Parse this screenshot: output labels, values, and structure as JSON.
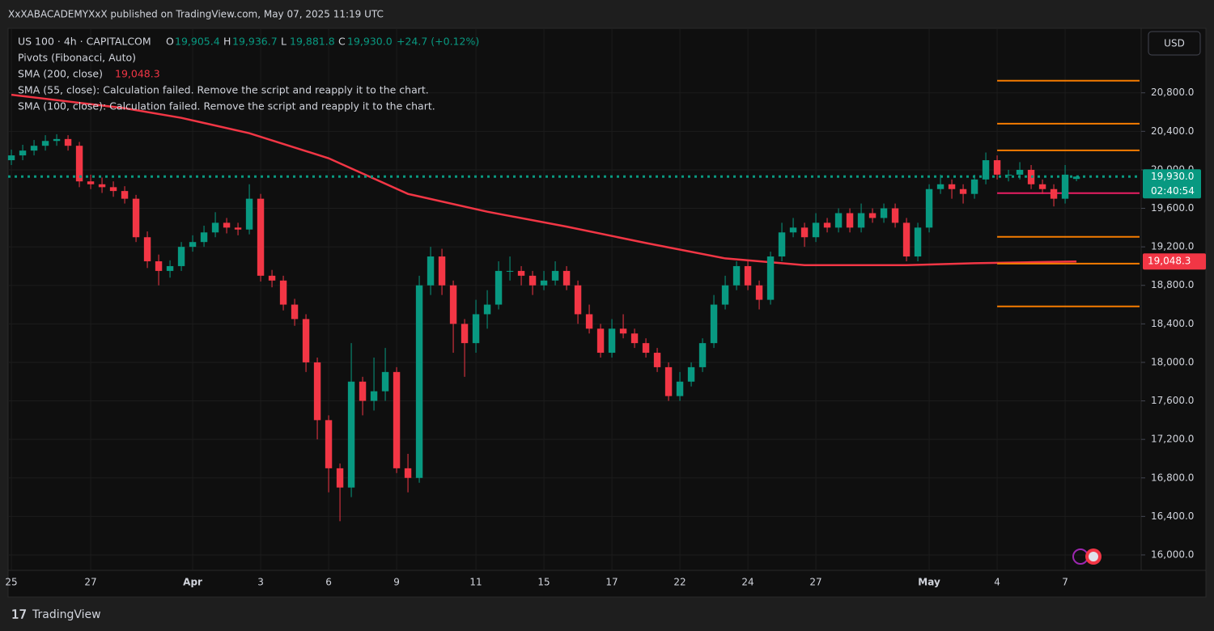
{
  "header": {
    "published": "XxXABACADEMYXxX published on TradingView.com, May 07, 2025 11:19 UTC",
    "brand": "TradingView",
    "currency": "USD"
  },
  "legend": {
    "symbol": "US 100 · 4h · CAPITALCOM",
    "ohlc": [
      {
        "label": "O",
        "value": "19,905.4"
      },
      {
        "label": "H",
        "value": "19,936.7"
      },
      {
        "label": "L",
        "value": "19,881.8"
      },
      {
        "label": "C",
        "value": "19,930.0"
      }
    ],
    "change": "+24.7 (+0.12%)",
    "pivots": "Pivots (Fibonacci, Auto)",
    "sma200": {
      "name": "SMA (200, close)",
      "value": "19,048.3"
    },
    "errors": [
      "SMA (55, close): Calculation failed. Remove the script and reapply it to the chart.",
      "SMA (100, close): Calculation failed. Remove the script and reapply it to the chart."
    ]
  },
  "chart_data": {
    "type": "candlestick",
    "up_color": "#089981",
    "down_color": "#f23645",
    "open": [
      20100,
      20150,
      20200,
      20250,
      20300,
      20320,
      20250,
      19880,
      19850,
      19820,
      19780,
      19700,
      19300,
      19050,
      18950,
      19000,
      19200,
      19250,
      19350,
      19450,
      19400,
      19380,
      19700,
      18900,
      18850,
      18600,
      18450,
      18000,
      17400,
      16900,
      16700,
      17800,
      17600,
      17700,
      17900,
      16900,
      16800,
      18800,
      19100,
      18800,
      18400,
      18200,
      18500,
      18600,
      18950,
      18950,
      18900,
      18800,
      18850,
      18950,
      18800,
      18500,
      18350,
      18100,
      18350,
      18300,
      18200,
      18100,
      17950,
      17650,
      17800,
      17950,
      18200,
      18600,
      18800,
      19000,
      18800,
      18650,
      19100,
      19350,
      19400,
      19300,
      19450,
      19400,
      19550,
      19400,
      19550,
      19500,
      19600,
      19450,
      19100,
      19400,
      19800,
      19850,
      19800,
      19750,
      19900,
      20100,
      19950,
      19950,
      20000,
      19850,
      19800,
      19700,
      19905.4
    ],
    "high": [
      20210,
      20260,
      20310,
      20360,
      20370,
      20360,
      20290,
      19950,
      19920,
      19880,
      19830,
      19740,
      19360,
      19120,
      19060,
      19250,
      19320,
      19420,
      19560,
      19500,
      19450,
      19850,
      19750,
      18960,
      18900,
      18660,
      18500,
      18050,
      17450,
      16950,
      18200,
      17850,
      18050,
      18150,
      17950,
      17050,
      18900,
      19200,
      19180,
      18850,
      18450,
      18650,
      18750,
      19050,
      19100,
      19000,
      18950,
      18950,
      19050,
      19000,
      18850,
      18600,
      18400,
      18450,
      18500,
      18350,
      18250,
      18150,
      18000,
      17900,
      18000,
      18250,
      18700,
      18900,
      19050,
      19050,
      18850,
      19150,
      19450,
      19500,
      19450,
      19550,
      19500,
      19600,
      19600,
      19650,
      19600,
      19650,
      19650,
      19500,
      19450,
      19850,
      19950,
      19900,
      19850,
      19950,
      20180,
      20150,
      20000,
      20080,
      20050,
      19900,
      19850,
      20050,
      19936.7
    ],
    "low": [
      20050,
      20100,
      20150,
      20200,
      20250,
      20200,
      19820,
      19800,
      19760,
      19720,
      19650,
      19250,
      18980,
      18800,
      18880,
      18950,
      19150,
      19200,
      19300,
      19340,
      19320,
      19330,
      18840,
      18780,
      18540,
      18380,
      17900,
      17200,
      16650,
      16350,
      16600,
      17450,
      17500,
      17600,
      16850,
      16650,
      16750,
      18700,
      18700,
      18100,
      17850,
      18100,
      18350,
      18550,
      18850,
      18800,
      18700,
      18750,
      18800,
      18750,
      18400,
      18300,
      18050,
      18050,
      18250,
      18150,
      18050,
      17900,
      17600,
      17600,
      17750,
      17900,
      18150,
      18550,
      18750,
      18750,
      18550,
      18600,
      19050,
      19300,
      19200,
      19250,
      19350,
      19350,
      19350,
      19350,
      19450,
      19450,
      19400,
      19050,
      19050,
      19350,
      19750,
      19700,
      19650,
      19700,
      19850,
      19900,
      19880,
      19900,
      19800,
      19750,
      19620,
      19650,
      19881.8
    ],
    "close": [
      20150,
      20200,
      20250,
      20300,
      20320,
      20250,
      19880,
      19850,
      19820,
      19780,
      19700,
      19300,
      19050,
      18950,
      19000,
      19200,
      19250,
      19350,
      19450,
      19400,
      19380,
      19700,
      18900,
      18850,
      18600,
      18450,
      18000,
      17400,
      16900,
      16700,
      17800,
      17600,
      17700,
      17900,
      16900,
      16800,
      18800,
      19100,
      18800,
      18400,
      18200,
      18500,
      18600,
      18950,
      18950,
      18900,
      18800,
      18850,
      18950,
      18800,
      18500,
      18350,
      18100,
      18350,
      18300,
      18200,
      18100,
      17950,
      17650,
      17800,
      17950,
      18200,
      18600,
      18800,
      19000,
      18800,
      18650,
      19100,
      19350,
      19400,
      19300,
      19450,
      19400,
      19550,
      19400,
      19550,
      19500,
      19600,
      19450,
      19100,
      19400,
      19800,
      19850,
      19800,
      19750,
      19900,
      20100,
      19950,
      19950,
      20000,
      19850,
      19800,
      19700,
      19950,
      19930
    ],
    "xlim": [
      -0.29,
      99.71
    ],
    "xticks": [
      {
        "value": 0,
        "label": "25"
      },
      {
        "value": 7,
        "label": "27"
      },
      {
        "value": 16,
        "label": "Apr"
      },
      {
        "value": 22,
        "label": "3"
      },
      {
        "value": 28,
        "label": "6"
      },
      {
        "value": 34,
        "label": "9"
      },
      {
        "value": 41,
        "label": "11"
      },
      {
        "value": 47,
        "label": "15"
      },
      {
        "value": 53,
        "label": "17"
      },
      {
        "value": 59,
        "label": "22"
      },
      {
        "value": 65,
        "label": "24"
      },
      {
        "value": 71,
        "label": "27"
      },
      {
        "value": 81,
        "label": "May"
      },
      {
        "value": 87,
        "label": "4"
      },
      {
        "value": 93,
        "label": "7"
      }
    ],
    "ylim": [
      15840,
      21470
    ],
    "yticks": [
      {
        "value": 16000,
        "label": "16,000.0"
      },
      {
        "value": 16400,
        "label": "16,400.0"
      },
      {
        "value": 16800,
        "label": "16,800.0"
      },
      {
        "value": 17200,
        "label": "17,200.0"
      },
      {
        "value": 17600,
        "label": "17,600.0"
      },
      {
        "value": 18000,
        "label": "18,000.0"
      },
      {
        "value": 18400,
        "label": "18,400.0"
      },
      {
        "value": 18800,
        "label": "18,800.0"
      },
      {
        "value": 19200,
        "label": "19,200.0"
      },
      {
        "value": 19600,
        "label": "19,600.0"
      },
      {
        "value": 20000,
        "label": "20,000.0"
      },
      {
        "value": 20400,
        "label": "20,400.0"
      },
      {
        "value": 20800,
        "label": "20,800.0"
      }
    ],
    "grid": true,
    "sma": {
      "color": "#f23645",
      "x": [
        0,
        5,
        10,
        15,
        21,
        28,
        35,
        42,
        49,
        56,
        63,
        70,
        79,
        85,
        90,
        94
      ],
      "values": [
        20780,
        20710,
        20640,
        20540,
        20380,
        20120,
        19750,
        19565,
        19410,
        19240,
        19080,
        19010,
        19010,
        19030,
        19040,
        19048.3
      ],
      "label": "19,048.3"
    },
    "pivots": {
      "start": 87,
      "levels": [
        20926,
        20480,
        20202,
        19758,
        19304,
        19026,
        18581
      ],
      "colors": [
        "#f57c00",
        "#f57c00",
        "#f57c00",
        "#e91e63",
        "#f57c00",
        "#f57c00",
        "#f57c00"
      ]
    },
    "last_price": {
      "value": 19930,
      "label": "19,930.0",
      "countdown": "02:40:54",
      "color": "#089981"
    }
  }
}
